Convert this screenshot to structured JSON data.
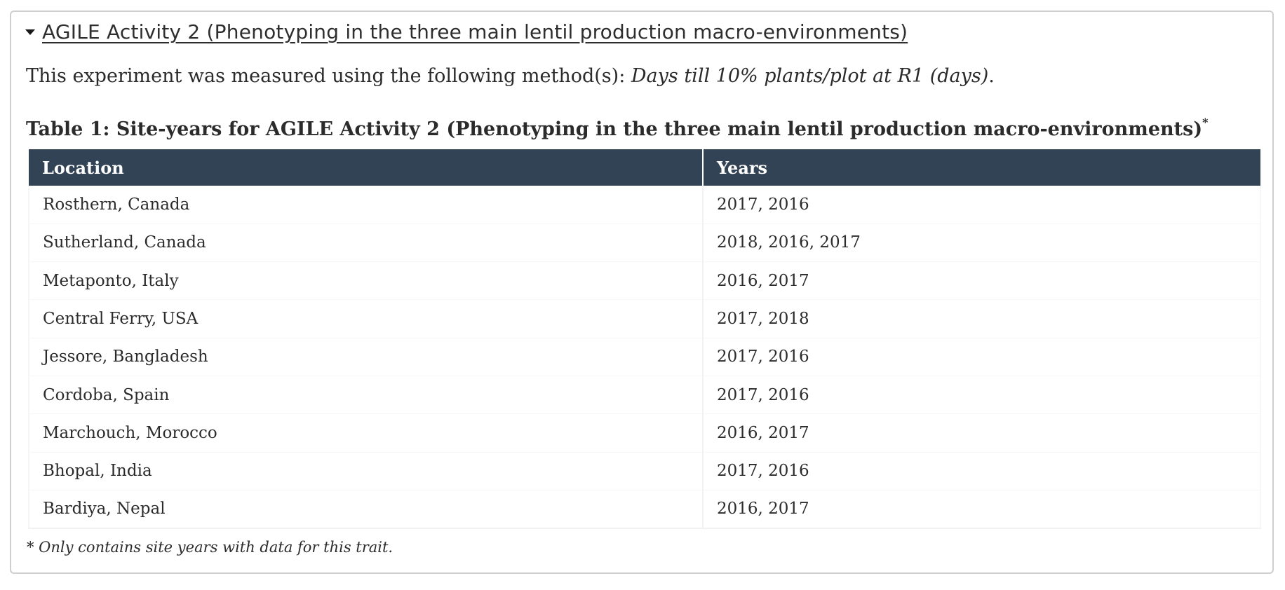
{
  "section": {
    "title": "AGILE Activity 2 (Phenotyping in the three main lentil production macro-environments)",
    "toggle_icon": "caret-down-icon"
  },
  "method": {
    "prefix": "This experiment was measured using the following method(s):",
    "name": "Days till 10% plants/plot at R1 (days)",
    "suffix": "."
  },
  "table": {
    "caption": "Table 1: Site-years for AGILE Activity 2 (Phenotyping in the three main lentil production macro-environments)",
    "caption_marker": "*",
    "headers": [
      "Location",
      "Years"
    ],
    "rows": [
      [
        "Rosthern, Canada",
        "2017, 2016"
      ],
      [
        "Sutherland, Canada",
        "2018, 2016, 2017"
      ],
      [
        "Metaponto, Italy",
        "2016, 2017"
      ],
      [
        "Central Ferry, USA",
        "2017, 2018"
      ],
      [
        "Jessore, Bangladesh",
        "2017, 2016"
      ],
      [
        "Cordoba, Spain",
        "2017, 2016"
      ],
      [
        "Marchouch, Morocco",
        "2016, 2017"
      ],
      [
        "Bhopal, India",
        "2017, 2016"
      ],
      [
        "Bardiya, Nepal",
        "2016, 2017"
      ]
    ],
    "header_color": "#334356"
  },
  "footnote": "* Only contains site years with data for this trait."
}
